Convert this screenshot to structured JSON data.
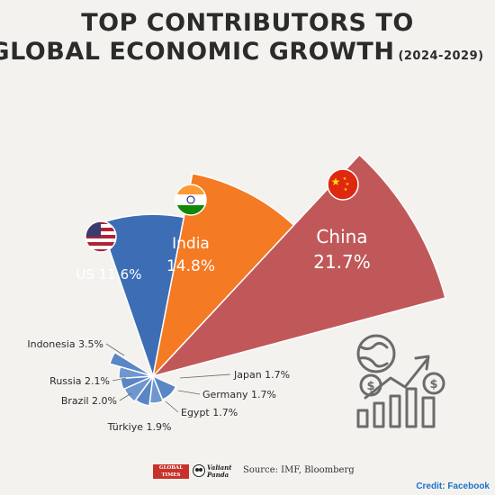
{
  "title_line1": "TOP CONTRIBUTORS TO",
  "title_line2": "GLOBAL ECONOMIC GROWTH",
  "subtitle": "(2024-2029)",
  "chart_data": {
    "type": "pie",
    "title": "TOP CONTRIBUTORS TO GLOBAL ECONOMIC GROWTH",
    "subtitle": "(2024-2029)",
    "unit": "%",
    "slices": [
      {
        "label": "China",
        "value": 21.7,
        "display": "21.7%",
        "color": "#c0585a",
        "flag": "china-flag-icon"
      },
      {
        "label": "India",
        "value": 14.8,
        "display": "14.8%",
        "color": "#f47a23",
        "flag": "india-flag-icon"
      },
      {
        "label": "US",
        "value": 11.6,
        "display": "11.6%",
        "color": "#3d6db5",
        "flag": "us-flag-icon"
      },
      {
        "label": "Indonesia",
        "value": 3.5,
        "display": "3.5%",
        "color": "#5b86c6"
      },
      {
        "label": "Russia",
        "value": 2.1,
        "display": "2.1%",
        "color": "#6f96cf"
      },
      {
        "label": "Brazil",
        "value": 2.0,
        "display": "2.0%",
        "color": "#5b86c6"
      },
      {
        "label": "Türkiye",
        "value": 1.9,
        "display": "1.9%",
        "color": "#6f96cf"
      },
      {
        "label": "Egypt",
        "value": 1.7,
        "display": "1.7%",
        "color": "#5b86c6"
      },
      {
        "label": "Germany",
        "value": 1.7,
        "display": "1.7%",
        "color": "#6f96cf"
      },
      {
        "label": "Japan",
        "value": 1.7,
        "display": "1.7%",
        "color": "#5b86c6"
      }
    ]
  },
  "footer": {
    "logo1_text": "GLOBAL\nTIMES",
    "logo2_text": "Valiant\nPanda",
    "source": "Source: IMF, Bloomberg",
    "credit": "Credit: Facebook"
  },
  "icons": {
    "growth": "globe-coins-growth-icon"
  }
}
